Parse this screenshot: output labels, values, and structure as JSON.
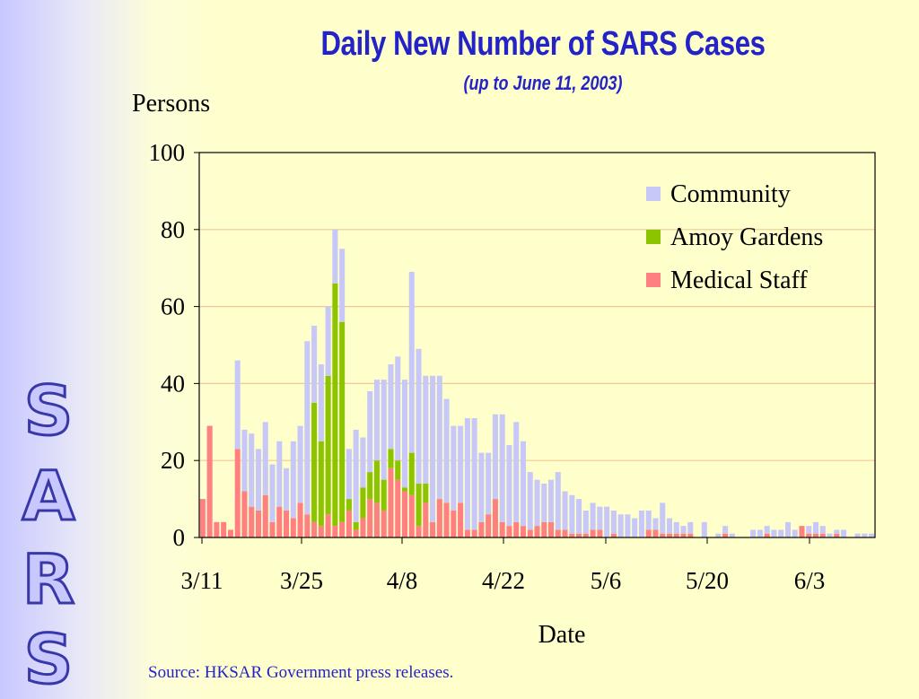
{
  "side_text": [
    "S",
    "A",
    "R",
    "S"
  ],
  "source": "Source: HKSAR Government press releases.",
  "colors": {
    "community": "#c8c8f8",
    "amoy": "#8cc400",
    "medical": "#ff8080",
    "grid": "#f0c896",
    "title": "#2323c8"
  },
  "chart_data": {
    "type": "bar",
    "stacked": true,
    "title": "Daily New Number of SARS Cases",
    "subtitle": "(up to June 11, 2003)",
    "ylabel": "Persons",
    "xlabel": "Date",
    "ylim": [
      0,
      100
    ],
    "yticks": [
      0,
      20,
      40,
      60,
      80,
      100
    ],
    "xtick_labels": [
      "3/11",
      "3/25",
      "4/8",
      "4/22",
      "5/6",
      "5/20",
      "6/3"
    ],
    "start_date": "3/12",
    "grid": true,
    "legend_position": "top-right",
    "series": [
      {
        "name": "Medical Staff",
        "color_key": "medical",
        "values": [
          10,
          29,
          4,
          4,
          2,
          23,
          12,
          8,
          7,
          11,
          4,
          8,
          7,
          5,
          9,
          6,
          4,
          3,
          6,
          3,
          4,
          7,
          2,
          5,
          10,
          9,
          7,
          18,
          15,
          12,
          11,
          3,
          9,
          4,
          10,
          9,
          7,
          9,
          2,
          2,
          4,
          6,
          10,
          4,
          3,
          4,
          3,
          2,
          3,
          4,
          4,
          2,
          2,
          1,
          1,
          1,
          2,
          2,
          0,
          1,
          0,
          0,
          0,
          0,
          2,
          2,
          1,
          1,
          1,
          1,
          1,
          0,
          0,
          0,
          0,
          1,
          0,
          0,
          0,
          0,
          0,
          1,
          0,
          0,
          0,
          0,
          3,
          1,
          1,
          1,
          0,
          1,
          0,
          0,
          0,
          0,
          0
        ]
      },
      {
        "name": "Amoy Gardens",
        "color_key": "amoy",
        "values": [
          0,
          0,
          0,
          0,
          0,
          0,
          0,
          0,
          0,
          0,
          0,
          0,
          0,
          0,
          0,
          0,
          31,
          22,
          36,
          63,
          52,
          3,
          2,
          8,
          7,
          11,
          8,
          5,
          5,
          1,
          11,
          11,
          5,
          0,
          0,
          0,
          0,
          0,
          0,
          0,
          0,
          0,
          0,
          0,
          0,
          0,
          0,
          0,
          0,
          0,
          0,
          0,
          0,
          0,
          0,
          0,
          0,
          0,
          0,
          0,
          0,
          0,
          0,
          0,
          0,
          0,
          0,
          0,
          0,
          0,
          0,
          0,
          0,
          0,
          0,
          0,
          0,
          0,
          0,
          0,
          0,
          0,
          0,
          0,
          0,
          0,
          0,
          0,
          0,
          0,
          0,
          0,
          0,
          0,
          0,
          0,
          0
        ]
      },
      {
        "name": "Community",
        "color_key": "community",
        "values": [
          0,
          0,
          0,
          0,
          0,
          23,
          16,
          19,
          16,
          19,
          15,
          17,
          11,
          20,
          20,
          45,
          20,
          20,
          18,
          14,
          19,
          13,
          24,
          13,
          21,
          21,
          26,
          22,
          27,
          28,
          47,
          35,
          28,
          38,
          32,
          27,
          22,
          20,
          29,
          29,
          18,
          16,
          22,
          28,
          21,
          26,
          22,
          15,
          12,
          10,
          11,
          15,
          10,
          10,
          9,
          6,
          7,
          6,
          8,
          6,
          6,
          6,
          5,
          7,
          5,
          3,
          8,
          4,
          3,
          2,
          3,
          0,
          4,
          0,
          1,
          2,
          1,
          0,
          0,
          2,
          2,
          2,
          2,
          2,
          4,
          2,
          0,
          2,
          3,
          2,
          1,
          1,
          2,
          0,
          1,
          1,
          1
        ]
      }
    ]
  }
}
